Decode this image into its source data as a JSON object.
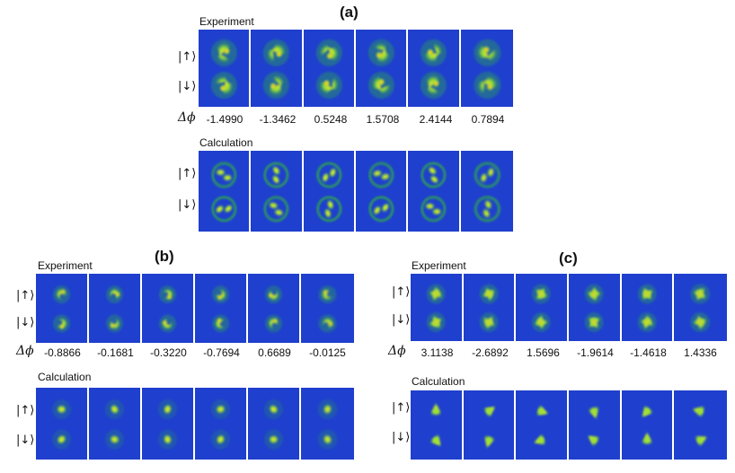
{
  "panels": {
    "a": {
      "label": "(a)",
      "experiment_label": "Experiment",
      "calculation_label": "Calculation",
      "state_up": "|↑⟩",
      "state_down": "|↓⟩",
      "dphi_symbol": "Δϕ",
      "dphi_values": [
        "-1.4990",
        "-1.3462",
        "0.5248",
        "1.5708",
        "2.4144",
        "0.7894"
      ]
    },
    "b": {
      "label": "(b)",
      "experiment_label": "Experiment",
      "calculation_label": "Calculation",
      "state_up": "|↑⟩",
      "state_down": "|↓⟩",
      "dphi_symbol": "Δϕ",
      "dphi_values": [
        "-0.8866",
        "-0.1681",
        "-0.3220",
        "-0.7694",
        "0.6689",
        "-0.0125"
      ]
    },
    "c": {
      "label": "(c)",
      "experiment_label": "Experiment",
      "calculation_label": "Calculation",
      "state_up": "|↑⟩",
      "state_down": "|↓⟩",
      "dphi_symbol": "Δϕ",
      "dphi_values": [
        "3.1138",
        "-2.6892",
        "1.5696",
        "-1.9614",
        "-1.4618",
        "1.4336"
      ]
    }
  },
  "colors": {
    "background": "#1f3fce",
    "cloud_outer": "#2fb83a",
    "cloud_mid": "#9fe036",
    "cloud_inner": "#ffe02a",
    "cloud_core": "#ff3a1a"
  }
}
